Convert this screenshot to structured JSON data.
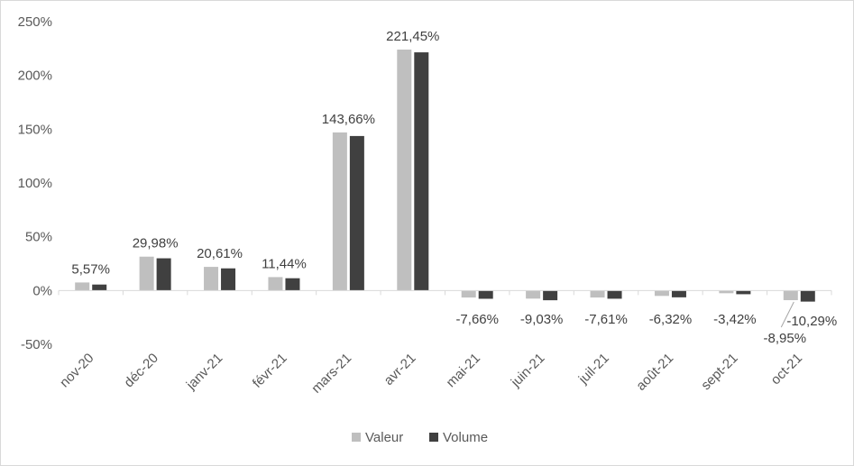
{
  "chart_data": {
    "type": "bar",
    "categories": [
      "nov-20",
      "déc-20",
      "janv-21",
      "févr-21",
      "mars-21",
      "avr-21",
      "mai-21",
      "juin-21",
      "juil-21",
      "août-21",
      "sept-21",
      "oct-21"
    ],
    "series": [
      {
        "name": "Valeur",
        "color": "#bfbfbf",
        "values": [
          7.5,
          31.5,
          22.0,
          12.5,
          147.0,
          224.0,
          -6.5,
          -7.5,
          -6.5,
          -5.0,
          -2.5,
          -8.95
        ]
      },
      {
        "name": "Volume",
        "color": "#404040",
        "values": [
          5.57,
          29.98,
          20.61,
          11.44,
          143.66,
          221.45,
          -7.66,
          -9.03,
          -7.61,
          -6.32,
          -3.42,
          -10.29
        ]
      }
    ],
    "data_labels": [
      {
        "category": "nov-20",
        "series": "Volume",
        "text": "5,57%"
      },
      {
        "category": "déc-20",
        "series": "Volume",
        "text": "29,98%"
      },
      {
        "category": "janv-21",
        "series": "Volume",
        "text": "20,61%"
      },
      {
        "category": "févr-21",
        "series": "Volume",
        "text": "11,44%"
      },
      {
        "category": "mars-21",
        "series": "Volume",
        "text": "143,66%"
      },
      {
        "category": "avr-21",
        "series": "Volume",
        "text": "221,45%"
      },
      {
        "category": "mai-21",
        "series": "Volume",
        "text": "-7,66%"
      },
      {
        "category": "juin-21",
        "series": "Volume",
        "text": "-9,03%"
      },
      {
        "category": "juil-21",
        "series": "Volume",
        "text": "-7,61%"
      },
      {
        "category": "août-21",
        "series": "Volume",
        "text": "-6,32%"
      },
      {
        "category": "sept-21",
        "series": "Volume",
        "text": "-3,42%"
      },
      {
        "category": "oct-21",
        "series": "Volume",
        "text": "-10,29%"
      },
      {
        "category": "oct-21",
        "series": "Valeur",
        "text": "-8,95%"
      }
    ],
    "yticks": [
      "250%",
      "200%",
      "150%",
      "100%",
      "50%",
      "0%",
      "-50%"
    ],
    "ytick_values": [
      250,
      200,
      150,
      100,
      50,
      0,
      -50
    ],
    "ylim": [
      -50,
      250
    ],
    "grid": false,
    "legend_position": "bottom",
    "title": "",
    "xlabel": "",
    "ylabel": ""
  }
}
